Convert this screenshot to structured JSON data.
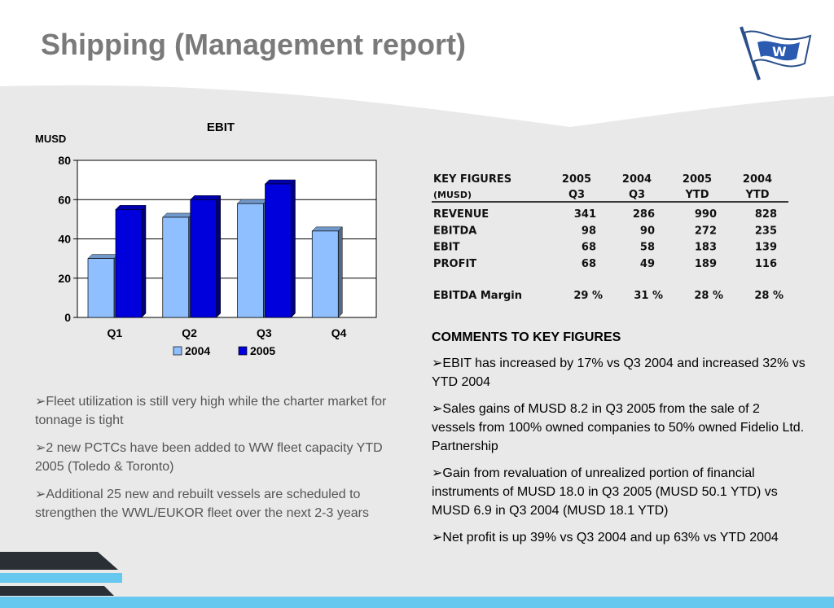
{
  "title": "Shipping (Management report)",
  "logo_letter": "W",
  "chart_data": {
    "type": "bar",
    "title": "EBIT",
    "ylabel": "MUSD",
    "categories": [
      "Q1",
      "Q2",
      "Q3",
      "Q4"
    ],
    "series": [
      {
        "name": "2004",
        "values": [
          30,
          51,
          58,
          44
        ],
        "color": "#8fbfff"
      },
      {
        "name": "2005",
        "values": [
          55,
          60,
          68,
          null
        ],
        "color": "#0000dd"
      }
    ],
    "ylim": [
      0,
      80
    ],
    "yticks": [
      "0",
      "20",
      "40",
      "60",
      "80"
    ],
    "grid": true,
    "legend": "bottom"
  },
  "key_figures": {
    "header_label": "KEY FIGURES",
    "header_unit": "(MUSD)",
    "columns": [
      {
        "year": "2005",
        "period": "Q3"
      },
      {
        "year": "2004",
        "period": "Q3"
      },
      {
        "year": "2005",
        "period": "YTD"
      },
      {
        "year": "2004",
        "period": "YTD"
      }
    ],
    "rows": [
      {
        "label": "REVENUE",
        "values": [
          "341",
          "286",
          "990",
          "828"
        ]
      },
      {
        "label": "EBITDA",
        "values": [
          "98",
          "90",
          "272",
          "235"
        ]
      },
      {
        "label": "EBIT",
        "values": [
          "68",
          "58",
          "183",
          "139"
        ]
      },
      {
        "label": "PROFIT",
        "values": [
          "68",
          "49",
          "189",
          "116"
        ]
      }
    ],
    "margin_row": {
      "label": "EBITDA Margin",
      "values": [
        "29 %",
        "31 %",
        "28 %",
        "28 %"
      ]
    }
  },
  "left_bullets": [
    "Fleet utilization is still very high while the charter market for tonnage is tight",
    "2 new PCTCs have been added to WW fleet capacity YTD 2005 (Toledo & Toronto)",
    "Additional 25 new and rebuilt vessels are scheduled to strengthen the WWL/EUKOR      fleet over the next 2-3 years"
  ],
  "comments": {
    "heading": "COMMENTS TO KEY FIGURES",
    "items": [
      "EBIT has increased by 17% vs Q3 2004 and increased 32% vs YTD 2004",
      "Sales gains of MUSD 8.2 in Q3 2005 from the sale of 2 vessels from 100% owned companies to 50% owned Fidelio Ltd. Partnership",
      "Gain from revaluation of unrealized portion of financial instruments of MUSD 18.0 in Q3 2005 (MUSD 50.1 YTD) vs MUSD 6.9 in Q3 2004 (MUSD 18.1 YTD)",
      "Net profit is up 39% vs Q3 2004 and up 63% vs YTD 2004"
    ]
  },
  "bullet_glyph": "➢"
}
